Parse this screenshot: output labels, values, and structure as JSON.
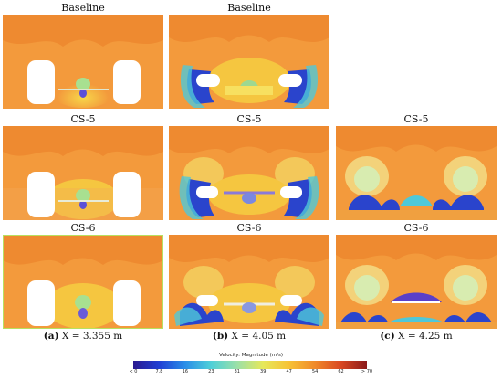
{
  "rows": [
    {
      "titles": [
        "Baseline",
        "Baseline",
        ""
      ]
    },
    {
      "titles": [
        "CS-5",
        "CS-5",
        "CS-5"
      ]
    },
    {
      "titles": [
        "CS-6",
        "CS-6",
        "CS-6"
      ]
    }
  ],
  "captions": [
    {
      "letter": "(a)",
      "text": " X = 3.355 m"
    },
    {
      "letter": "(b)",
      "text": " X = 4.05 m"
    },
    {
      "letter": "(c)",
      "text": " X = 4.25 m"
    }
  ],
  "legend": {
    "title": "Velocity: Magnitude (m/s)",
    "ticks": [
      "< 0",
      "7.8",
      "16",
      "23",
      "31",
      "39",
      "47",
      "54",
      "62",
      "> 70"
    ],
    "colors": [
      "#2b1a8f",
      "#1f3fd4",
      "#2a8ee8",
      "#4fd0d8",
      "#9be0a8",
      "#e6e85a",
      "#f7c235",
      "#f08a2a",
      "#d94722",
      "#8b1a1a"
    ]
  },
  "colors": {
    "background_flow": "#f39a3c",
    "upper_flow": "#ef8f35",
    "wake_yellow": "#f3c63a",
    "low_speed_blue": "#2233c8",
    "stagnation_white": "#ffffff"
  }
}
